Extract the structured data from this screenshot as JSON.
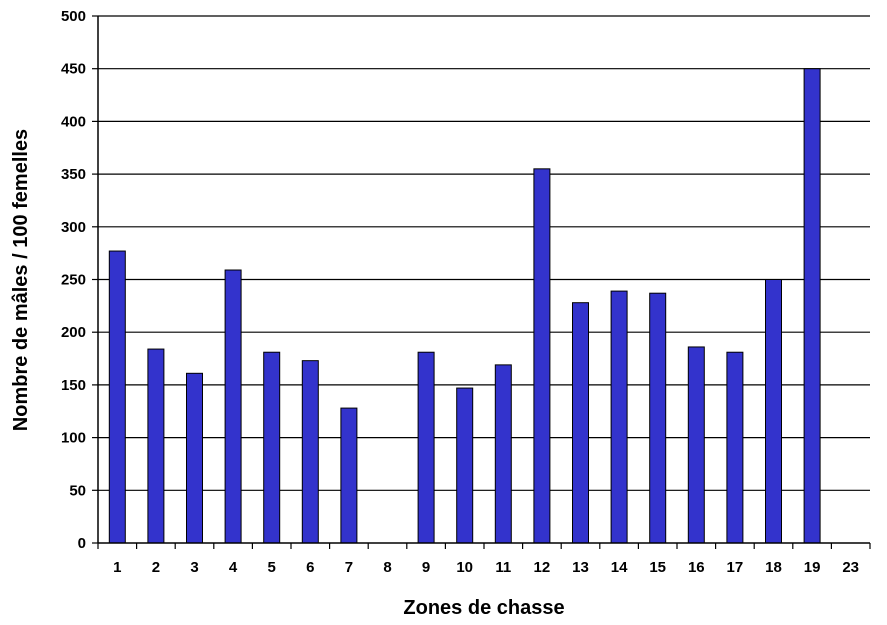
{
  "chart_data": {
    "type": "bar",
    "title": "",
    "xlabel": "Zones de chasse",
    "ylabel": "Nombre de mâles / 100 femelles",
    "categories": [
      "1",
      "2",
      "3",
      "4",
      "5",
      "6",
      "7",
      "8",
      "9",
      "10",
      "11",
      "12",
      "13",
      "14",
      "15",
      "16",
      "17",
      "18",
      "19",
      "23"
    ],
    "values": [
      277,
      184,
      161,
      259,
      181,
      173,
      128,
      0,
      181,
      147,
      169,
      355,
      228,
      239,
      237,
      186,
      181,
      250,
      450,
      0
    ],
    "ylim": [
      0,
      500
    ],
    "yticks": [
      0,
      50,
      100,
      150,
      200,
      250,
      300,
      350,
      400,
      450,
      500
    ],
    "grid": true,
    "legend": "none",
    "colors": {
      "bar": "#3333cc",
      "bar_stroke": "#000000",
      "grid": "#000000"
    }
  }
}
